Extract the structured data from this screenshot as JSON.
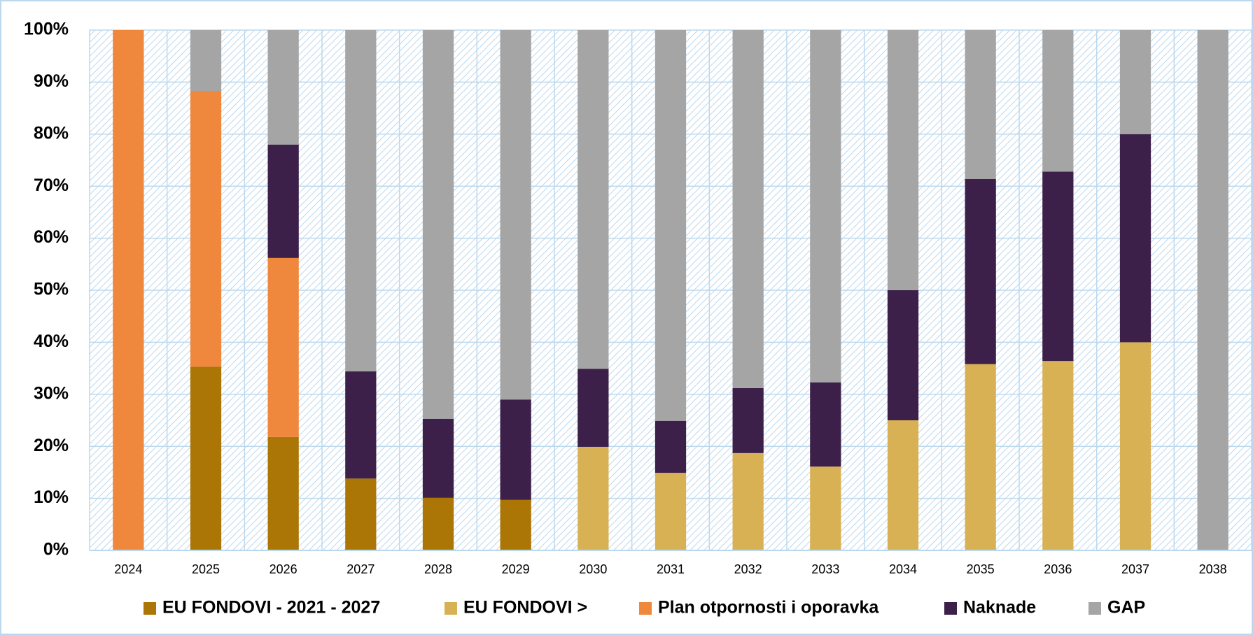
{
  "chart_data": {
    "type": "stacked-bar",
    "categories": [
      "2024",
      "2025",
      "2026",
      "2027",
      "2028",
      "2029",
      "2030",
      "2031",
      "2032",
      "2033",
      "2034",
      "2035",
      "2036",
      "2037",
      "2038"
    ],
    "series": [
      {
        "name": "EU FONDOVI - 2021 - 2027",
        "color": "#ab7605",
        "values": [
          null,
          35.3,
          21.8,
          13.8,
          10.1,
          9.7,
          null,
          null,
          null,
          null,
          null,
          null,
          null,
          null,
          null
        ]
      },
      {
        "name": "EU FONDOVI >",
        "color": "#d9b155",
        "values": [
          null,
          null,
          null,
          null,
          null,
          null,
          19.9,
          14.9,
          18.7,
          16.1,
          25,
          35.8,
          36.4,
          40,
          null
        ]
      },
      {
        "name": "Plan otpornosti i oporavka",
        "color": "#ef873c",
        "values": [
          100,
          53,
          34.4,
          null,
          null,
          null,
          null,
          null,
          null,
          null,
          null,
          null,
          null,
          null,
          null
        ]
      },
      {
        "name": "Naknade",
        "color": "#3c2049",
        "values": [
          null,
          null,
          21.8,
          20.6,
          15.2,
          19.3,
          15,
          10,
          12.5,
          16.2,
          25,
          35.6,
          36.4,
          40,
          null
        ]
      },
      {
        "name": "GAP",
        "color": "#a5a5a5",
        "values": [
          null,
          11.7,
          22,
          65.6,
          74.7,
          71,
          65.1,
          75.1,
          68.8,
          67.7,
          50,
          28.6,
          27.2,
          20,
          100
        ]
      }
    ],
    "ylim": [
      0,
      100
    ],
    "yticks": [
      {
        "value": 0,
        "label": "0%"
      },
      {
        "value": 10,
        "label": "10%"
      },
      {
        "value": 20,
        "label": "20%"
      },
      {
        "value": 30,
        "label": "30%"
      },
      {
        "value": 40,
        "label": "40%"
      },
      {
        "value": 50,
        "label": "50%"
      },
      {
        "value": 60,
        "label": "60%"
      },
      {
        "value": 70,
        "label": "70%"
      },
      {
        "value": 80,
        "label": "80%"
      },
      {
        "value": 90,
        "label": "90%"
      },
      {
        "value": 100,
        "label": "100%"
      }
    ],
    "grid": true,
    "legend": "bottom"
  }
}
